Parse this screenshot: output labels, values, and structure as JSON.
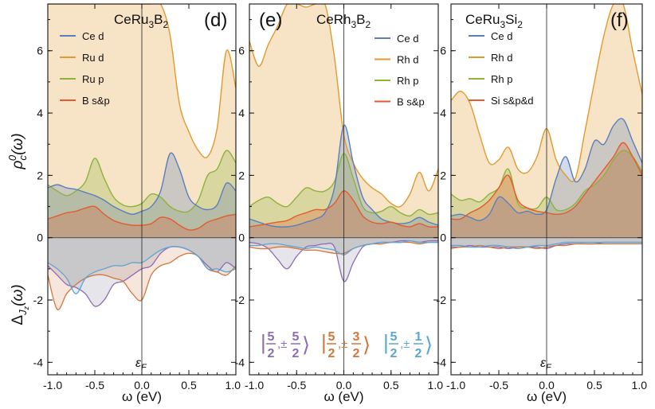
{
  "colors": {
    "ce_d": "#5b7fbd",
    "metal_d": "#e29a2e",
    "metal_p": "#8cb33c",
    "ligand": "#e35b2f",
    "hyb_52": "#8e6bb8",
    "hyb_32": "#d3763a",
    "hyb_12": "#5aa7d6",
    "orange_fill": "#fbe3c6",
    "gray_fill": "#cfcfd8"
  },
  "shared": {
    "ylabel_top": "ρ_c^0(ω)",
    "ylabel_bottom": "Δ_Jz(ω)",
    "xlabel": "ω (eV)",
    "fermi_label": "ε_F",
    "x_ticks": [
      "-1.0",
      "-0.5",
      "0.0",
      "0.5",
      "1.0"
    ],
    "y_ticks": [
      "-4",
      "-2",
      "0",
      "2",
      "4",
      "6"
    ],
    "hyb_legend": [
      {
        "name": "|5/2,±5/2⟩",
        "num_j": "5",
        "num_m": "5",
        "color_key": "hyb_52"
      },
      {
        "name": "|5/2,±3/2⟩",
        "num_j": "5",
        "num_m": "3",
        "color_key": "hyb_32"
      },
      {
        "name": "|5/2,±1/2⟩",
        "num_j": "5",
        "num_m": "1",
        "color_key": "hyb_12"
      }
    ]
  },
  "chart_data": [
    {
      "type": "area",
      "panel": "d",
      "title": "CeRu3B2",
      "title_base": "CeRu",
      "title_sub1": "3",
      "title_mid": "B",
      "title_sub2": "2",
      "xlim": [
        -1.0,
        1.0
      ],
      "ylim": [
        -4.4,
        7.5
      ],
      "legend": [
        "Ce d",
        "Ru d",
        "Ru p",
        "B s&p"
      ],
      "x": [
        -1.0,
        -0.9,
        -0.8,
        -0.7,
        -0.6,
        -0.5,
        -0.4,
        -0.3,
        -0.2,
        -0.1,
        0.0,
        0.1,
        0.2,
        0.3,
        0.4,
        0.5,
        0.6,
        0.7,
        0.8,
        0.9,
        1.0
      ],
      "series": [
        {
          "name": "Ce d",
          "values": [
            1.6,
            1.7,
            1.6,
            1.55,
            1.45,
            1.35,
            1.2,
            1.0,
            0.85,
            0.75,
            0.85,
            1.0,
            1.5,
            2.7,
            2.2,
            1.3,
            1.0,
            0.9,
            1.05,
            1.75,
            1.5
          ]
        },
        {
          "name": "Ru d",
          "values": [
            7.5,
            7.5,
            7.5,
            7.5,
            7.5,
            7.5,
            7.5,
            7.5,
            7.5,
            7.5,
            7.5,
            7.5,
            7.5,
            6.5,
            4.3,
            3.4,
            2.8,
            2.6,
            3.5,
            6.0,
            4.8
          ]
        },
        {
          "name": "Ru p",
          "values": [
            1.7,
            1.5,
            1.35,
            1.5,
            1.8,
            2.55,
            1.9,
            1.3,
            1.05,
            1.0,
            1.1,
            1.4,
            1.3,
            1.0,
            0.85,
            0.85,
            1.2,
            2.0,
            2.2,
            2.8,
            2.4
          ]
        },
        {
          "name": "B s&p",
          "values": [
            0.6,
            0.7,
            0.8,
            0.85,
            0.95,
            1.0,
            0.75,
            0.55,
            0.45,
            0.4,
            0.4,
            0.45,
            0.65,
            0.6,
            0.4,
            0.25,
            0.3,
            0.5,
            0.6,
            0.7,
            0.75
          ]
        }
      ],
      "hybridization": [
        {
          "name": "|5/2,±5/2⟩",
          "values": [
            -0.9,
            -1.2,
            -1.5,
            -1.6,
            -1.8,
            -2.2,
            -2.0,
            -1.5,
            -1.4,
            -1.2,
            -1.0,
            -0.9,
            -0.5,
            -0.3,
            -0.3,
            -0.4,
            -0.6,
            -0.9,
            -1.1,
            -0.8,
            -1.0
          ]
        },
        {
          "name": "|5/2,±3/2⟩",
          "values": [
            -1.2,
            -2.3,
            -1.8,
            -1.5,
            -1.3,
            -1.2,
            -1.2,
            -1.3,
            -1.4,
            -1.8,
            -2.0,
            -1.2,
            -0.9,
            -0.8,
            -0.6,
            -0.5,
            -0.6,
            -1.0,
            -1.1,
            -1.2,
            -0.9
          ]
        },
        {
          "name": "|5/2,±1/2⟩",
          "values": [
            -0.8,
            -1.0,
            -1.3,
            -1.8,
            -1.3,
            -1.1,
            -1.0,
            -0.9,
            -0.9,
            -0.8,
            -0.8,
            -0.6,
            -0.4,
            -0.3,
            -0.3,
            -0.4,
            -0.6,
            -1.0,
            -1.0,
            -1.1,
            -1.0
          ]
        }
      ]
    },
    {
      "type": "area",
      "panel": "e",
      "title": "CeRh3B2",
      "title_base": "CeRh",
      "title_sub1": "3",
      "title_mid": "B",
      "title_sub2": "2",
      "xlim": [
        -1.0,
        1.0
      ],
      "ylim": [
        -4.4,
        7.5
      ],
      "legend": [
        "Ce d",
        "Rh d",
        "Rh p",
        "B s&p"
      ],
      "x": [
        -1.0,
        -0.9,
        -0.8,
        -0.7,
        -0.6,
        -0.5,
        -0.4,
        -0.3,
        -0.2,
        -0.1,
        0.0,
        0.1,
        0.2,
        0.3,
        0.4,
        0.5,
        0.6,
        0.7,
        0.8,
        0.9,
        1.0
      ],
      "series": [
        {
          "name": "Ce d",
          "values": [
            0.6,
            0.5,
            0.4,
            0.35,
            0.35,
            0.4,
            0.5,
            0.6,
            0.8,
            1.6,
            3.6,
            2.4,
            1.3,
            0.9,
            0.6,
            0.5,
            0.45,
            0.5,
            0.65,
            0.5,
            0.4
          ]
        },
        {
          "name": "Rh d",
          "values": [
            6.3,
            5.5,
            6.2,
            6.8,
            7.5,
            7.5,
            7.4,
            7.5,
            7.5,
            5.8,
            3.3,
            2.4,
            1.9,
            1.6,
            1.4,
            1.1,
            1.0,
            1.4,
            2.1,
            1.5,
            2.2
          ]
        },
        {
          "name": "Rh p",
          "values": [
            1.0,
            1.2,
            1.3,
            1.1,
            1.0,
            1.3,
            1.6,
            1.5,
            1.5,
            1.8,
            2.7,
            1.9,
            1.0,
            0.8,
            0.85,
            1.0,
            0.8,
            0.7,
            0.9,
            0.75,
            0.8
          ]
        },
        {
          "name": "B s&p",
          "values": [
            0.35,
            0.4,
            0.45,
            0.5,
            0.55,
            0.7,
            0.8,
            0.9,
            0.9,
            1.1,
            1.5,
            1.2,
            0.7,
            0.5,
            0.45,
            0.5,
            0.4,
            0.35,
            0.45,
            0.35,
            0.35
          ]
        }
      ],
      "hybridization": [
        {
          "name": "|5/2,±5/2⟩",
          "values": [
            -0.15,
            -0.2,
            -0.35,
            -0.7,
            -1.0,
            -0.6,
            -0.3,
            -0.25,
            -0.2,
            -0.3,
            -1.4,
            -0.8,
            -0.3,
            -0.2,
            -0.15,
            -0.15,
            -0.1,
            -0.1,
            -0.15,
            -0.1,
            -0.1
          ]
        },
        {
          "name": "|5/2,±3/2⟩",
          "values": [
            -0.3,
            -0.35,
            -0.35,
            -0.3,
            -0.3,
            -0.35,
            -0.4,
            -0.4,
            -0.45,
            -0.5,
            -0.5,
            -0.35,
            -0.25,
            -0.2,
            -0.2,
            -0.15,
            -0.15,
            -0.15,
            -0.2,
            -0.15,
            -0.15
          ]
        },
        {
          "name": "|5/2,±1/2⟩",
          "values": [
            -0.25,
            -0.25,
            -0.2,
            -0.2,
            -0.25,
            -0.3,
            -0.35,
            -0.3,
            -0.35,
            -0.4,
            -0.55,
            -0.35,
            -0.25,
            -0.2,
            -0.15,
            -0.15,
            -0.15,
            -0.1,
            -0.15,
            -0.15,
            -0.15
          ]
        }
      ]
    },
    {
      "type": "area",
      "panel": "f",
      "title": "CeRu3Si2",
      "title_base": "CeRu",
      "title_sub1": "3",
      "title_mid": "Si",
      "title_sub2": "2",
      "xlim": [
        -1.0,
        1.0
      ],
      "ylim": [
        -4.4,
        7.5
      ],
      "legend": [
        "Ce d",
        "Rh d",
        "Rh p",
        "Si s&p&d"
      ],
      "x": [
        -1.0,
        -0.9,
        -0.8,
        -0.7,
        -0.6,
        -0.5,
        -0.4,
        -0.3,
        -0.2,
        -0.1,
        0.0,
        0.1,
        0.2,
        0.3,
        0.4,
        0.5,
        0.6,
        0.7,
        0.8,
        0.9,
        1.0
      ],
      "series": [
        {
          "name": "Ce d",
          "values": [
            0.7,
            0.75,
            0.65,
            0.55,
            0.75,
            1.3,
            1.1,
            0.8,
            0.85,
            0.75,
            0.9,
            1.9,
            2.6,
            1.8,
            2.2,
            3.1,
            3.0,
            3.6,
            3.8,
            3.1,
            2.4
          ]
        },
        {
          "name": "Rh d",
          "values": [
            4.4,
            4.7,
            4.3,
            3.3,
            2.4,
            2.5,
            2.9,
            2.2,
            2.1,
            2.6,
            3.5,
            2.5,
            2.0,
            1.9,
            3.4,
            5.0,
            6.5,
            7.5,
            7.5,
            6.0,
            4.6
          ]
        },
        {
          "name": "Rh p",
          "values": [
            1.4,
            1.2,
            1.25,
            1.15,
            1.4,
            1.6,
            2.2,
            1.1,
            0.95,
            0.95,
            1.3,
            0.9,
            0.9,
            1.1,
            1.5,
            1.7,
            2.0,
            2.5,
            2.8,
            2.6,
            2.1
          ]
        },
        {
          "name": "Si s&p&d",
          "values": [
            0.6,
            0.6,
            0.8,
            0.95,
            1.2,
            1.6,
            2.0,
            1.2,
            0.95,
            0.85,
            0.8,
            0.75,
            0.8,
            1.0,
            1.4,
            1.8,
            2.2,
            2.6,
            3.05,
            2.6,
            2.0
          ]
        }
      ],
      "hybridization": [
        {
          "name": "|5/2,±5/2⟩",
          "values": [
            -0.3,
            -0.3,
            -0.25,
            -0.3,
            -0.3,
            -0.3,
            -0.35,
            -0.3,
            -0.3,
            -0.3,
            -0.35,
            -0.25,
            -0.2,
            -0.2,
            -0.2,
            -0.2,
            -0.15,
            -0.15,
            -0.15,
            -0.15,
            -0.15
          ]
        },
        {
          "name": "|5/2,±3/2⟩",
          "values": [
            -0.35,
            -0.3,
            -0.3,
            -0.25,
            -0.3,
            -0.35,
            -0.3,
            -0.3,
            -0.3,
            -0.35,
            -0.3,
            -0.25,
            -0.25,
            -0.2,
            -0.2,
            -0.2,
            -0.2,
            -0.2,
            -0.2,
            -0.2,
            -0.2
          ]
        },
        {
          "name": "|5/2,±1/2⟩",
          "values": [
            -0.25,
            -0.25,
            -0.3,
            -0.3,
            -0.25,
            -0.25,
            -0.3,
            -0.35,
            -0.3,
            -0.25,
            -0.25,
            -0.2,
            -0.15,
            -0.15,
            -0.15,
            -0.15,
            -0.15,
            -0.15,
            -0.15,
            -0.15,
            -0.15
          ]
        }
      ]
    }
  ]
}
